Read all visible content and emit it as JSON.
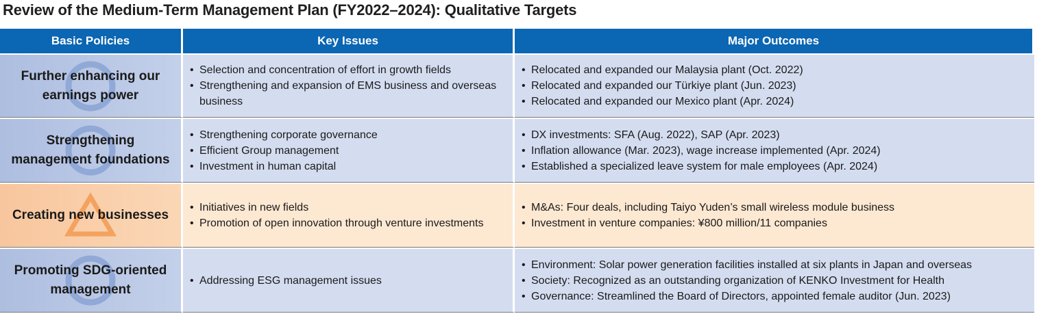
{
  "title": "Review of the Medium-Term Management Plan (FY2022–2024): Qualitative Targets",
  "headers": {
    "col1": "Basic Policies",
    "col2": "Key Issues",
    "col3": "Major Outcomes"
  },
  "rows": [
    {
      "policy_line1": "Further enhancing our",
      "policy_line2": "earnings power",
      "mark": "circle-icon",
      "issues": [
        "Selection and concentration of effort in growth fields",
        "Strengthening and expansion of EMS business and overseas business"
      ],
      "outcomes": [
        "Relocated and expanded our Malaysia plant (Oct. 2022)",
        "Relocated and expanded our Türkiye plant (Jun. 2023)",
        "Relocated and expanded our Mexico plant (Apr. 2024)"
      ]
    },
    {
      "policy_line1": "Strengthening",
      "policy_line2": "management foundations",
      "mark": "circle-icon",
      "issues": [
        "Strengthening corporate governance",
        "Efficient Group management",
        "Investment in human capital"
      ],
      "outcomes": [
        "DX investments: SFA (Aug. 2022), SAP (Apr. 2023)",
        "Inflation allowance (Mar. 2023), wage increase implemented (Apr. 2024)",
        "Established a specialized leave system for male employees (Apr. 2024)"
      ]
    },
    {
      "policy_line1": "Creating new businesses",
      "policy_line2": "",
      "mark": "triangle-icon",
      "issues": [
        "Initiatives in new fields",
        "Promotion of open innovation through venture investments"
      ],
      "outcomes": [
        "M&As: Four deals, including Taiyo Yuden’s small wireless module business",
        "Investment in venture companies: ¥800 million/11 companies"
      ]
    },
    {
      "policy_line1": "Promoting SDG-oriented",
      "policy_line2": "management",
      "mark": "circle-icon",
      "issues": [
        "Addressing ESG management issues"
      ],
      "outcomes": [
        "Environment: Solar power generation facilities installed at six plants in Japan and overseas",
        "Society: Recognized as an outstanding organization of KENKO Investment for Health",
        "Governance: Streamlined the Board of Directors, appointed female auditor (Jun. 2023)"
      ]
    }
  ],
  "colors": {
    "header": "#0b66b3",
    "row_blue": "#d4ddf0",
    "row_orange": "#fde8d2",
    "mark_blue": "#8aa3d4",
    "mark_orange": "#f3a25f"
  }
}
